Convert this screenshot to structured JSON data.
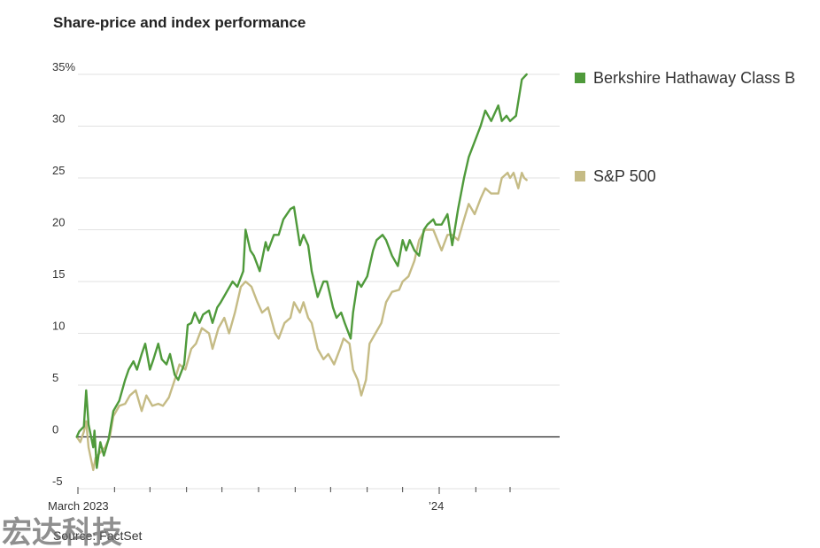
{
  "chart_data": {
    "type": "line",
    "title": "Share-price and index performance",
    "source": "Source: FactSet",
    "ylim": [
      -5,
      35
    ],
    "y_ticks": [
      35,
      30,
      25,
      20,
      15,
      10,
      5,
      0,
      -5
    ],
    "y_tick_labels": [
      "35%",
      "30",
      "25",
      "20",
      "15",
      "10",
      "5",
      "0",
      "-5"
    ],
    "x_start": "2023-03-01",
    "x_end": "2024-04-12",
    "x_tick_labels": [
      {
        "date": "2023-03-01",
        "label": "March 2023"
      },
      {
        "date": "2024-01-01",
        "label": "’24"
      }
    ],
    "x_minor_ticks": [
      "2023-04-01",
      "2023-05-01",
      "2023-06-01",
      "2023-07-01",
      "2023-08-01",
      "2023-09-01",
      "2023-10-01",
      "2023-11-01",
      "2023-12-01",
      "2024-02-01",
      "2024-03-01"
    ],
    "grid": true,
    "legend_position": "right",
    "series": [
      {
        "name": "Berkshire Hathaway Class B",
        "color": "#4f9a3b",
        "points": [
          [
            "2023-02-28",
            0.0
          ],
          [
            "2023-03-02",
            0.5
          ],
          [
            "2023-03-06",
            1.0
          ],
          [
            "2023-03-08",
            4.5
          ],
          [
            "2023-03-10",
            1.2
          ],
          [
            "2023-03-14",
            -1.0
          ],
          [
            "2023-03-15",
            0.6
          ],
          [
            "2023-03-17",
            -3.0
          ],
          [
            "2023-03-20",
            -0.5
          ],
          [
            "2023-03-23",
            -1.8
          ],
          [
            "2023-03-27",
            -0.2
          ],
          [
            "2023-03-31",
            2.5
          ],
          [
            "2023-04-05",
            3.5
          ],
          [
            "2023-04-10",
            5.5
          ],
          [
            "2023-04-13",
            6.5
          ],
          [
            "2023-04-17",
            7.3
          ],
          [
            "2023-04-20",
            6.5
          ],
          [
            "2023-04-24",
            8.0
          ],
          [
            "2023-04-27",
            9.0
          ],
          [
            "2023-05-01",
            6.5
          ],
          [
            "2023-05-04",
            7.5
          ],
          [
            "2023-05-08",
            9.0
          ],
          [
            "2023-05-11",
            7.5
          ],
          [
            "2023-05-15",
            7.0
          ],
          [
            "2023-05-18",
            8.0
          ],
          [
            "2023-05-22",
            6.0
          ],
          [
            "2023-05-25",
            5.5
          ],
          [
            "2023-05-30",
            7.0
          ],
          [
            "2023-06-02",
            10.8
          ],
          [
            "2023-06-05",
            11.0
          ],
          [
            "2023-06-08",
            12.0
          ],
          [
            "2023-06-12",
            11.0
          ],
          [
            "2023-06-15",
            11.8
          ],
          [
            "2023-06-20",
            12.2
          ],
          [
            "2023-06-23",
            11.0
          ],
          [
            "2023-06-27",
            12.5
          ],
          [
            "2023-06-30",
            13.0
          ],
          [
            "2023-07-05",
            14.0
          ],
          [
            "2023-07-10",
            15.0
          ],
          [
            "2023-07-14",
            14.5
          ],
          [
            "2023-07-19",
            16.0
          ],
          [
            "2023-07-21",
            20.0
          ],
          [
            "2023-07-25",
            18.0
          ],
          [
            "2023-07-28",
            17.5
          ],
          [
            "2023-08-02",
            16.0
          ],
          [
            "2023-08-07",
            18.8
          ],
          [
            "2023-08-09",
            18.0
          ],
          [
            "2023-08-14",
            19.5
          ],
          [
            "2023-08-18",
            19.5
          ],
          [
            "2023-08-22",
            21.0
          ],
          [
            "2023-08-28",
            22.0
          ],
          [
            "2023-08-31",
            22.2
          ],
          [
            "2023-09-05",
            18.5
          ],
          [
            "2023-09-08",
            19.5
          ],
          [
            "2023-09-12",
            18.5
          ],
          [
            "2023-09-15",
            16.0
          ],
          [
            "2023-09-20",
            13.5
          ],
          [
            "2023-09-25",
            15.0
          ],
          [
            "2023-09-28",
            15.0
          ],
          [
            "2023-10-03",
            12.5
          ],
          [
            "2023-10-06",
            11.5
          ],
          [
            "2023-10-10",
            12.0
          ],
          [
            "2023-10-13",
            11.0
          ],
          [
            "2023-10-18",
            9.5
          ],
          [
            "2023-10-20",
            12.0
          ],
          [
            "2023-10-24",
            15.0
          ],
          [
            "2023-10-27",
            14.5
          ],
          [
            "2023-11-01",
            15.5
          ],
          [
            "2023-11-06",
            18.0
          ],
          [
            "2023-11-09",
            19.0
          ],
          [
            "2023-11-14",
            19.5
          ],
          [
            "2023-11-17",
            19.0
          ],
          [
            "2023-11-22",
            17.5
          ],
          [
            "2023-11-27",
            16.5
          ],
          [
            "2023-12-01",
            19.0
          ],
          [
            "2023-12-04",
            18.0
          ],
          [
            "2023-12-07",
            19.0
          ],
          [
            "2023-12-11",
            18.0
          ],
          [
            "2023-12-15",
            17.5
          ],
          [
            "2023-12-19",
            20.0
          ],
          [
            "2023-12-22",
            20.5
          ],
          [
            "2023-12-27",
            21.0
          ],
          [
            "2023-12-29",
            20.5
          ],
          [
            "2024-01-03",
            20.5
          ],
          [
            "2024-01-08",
            21.5
          ],
          [
            "2024-01-12",
            18.5
          ],
          [
            "2024-01-17",
            22.0
          ],
          [
            "2024-01-22",
            25.0
          ],
          [
            "2024-01-26",
            27.0
          ],
          [
            "2024-01-31",
            28.5
          ],
          [
            "2024-02-05",
            30.0
          ],
          [
            "2024-02-09",
            31.5
          ],
          [
            "2024-02-14",
            30.5
          ],
          [
            "2024-02-20",
            32.0
          ],
          [
            "2024-02-23",
            30.5
          ],
          [
            "2024-02-27",
            31.0
          ],
          [
            "2024-03-01",
            30.5
          ],
          [
            "2024-03-06",
            31.0
          ],
          [
            "2024-03-11",
            34.5
          ],
          [
            "2024-03-15",
            35.0
          ]
        ]
      },
      {
        "name": "S&P 500",
        "color": "#c5bb85",
        "points": [
          [
            "2023-02-28",
            0.0
          ],
          [
            "2023-03-03",
            -0.5
          ],
          [
            "2023-03-06",
            0.5
          ],
          [
            "2023-03-08",
            1.5
          ],
          [
            "2023-03-10",
            -1.0
          ],
          [
            "2023-03-14",
            -3.2
          ],
          [
            "2023-03-16",
            -2.0
          ],
          [
            "2023-03-20",
            -1.5
          ],
          [
            "2023-03-24",
            -1.0
          ],
          [
            "2023-03-28",
            0.0
          ],
          [
            "2023-03-31",
            2.0
          ],
          [
            "2023-04-05",
            3.0
          ],
          [
            "2023-04-10",
            3.2
          ],
          [
            "2023-04-14",
            4.0
          ],
          [
            "2023-04-19",
            4.5
          ],
          [
            "2023-04-24",
            2.5
          ],
          [
            "2023-04-28",
            4.0
          ],
          [
            "2023-05-03",
            3.0
          ],
          [
            "2023-05-08",
            3.2
          ],
          [
            "2023-05-12",
            3.0
          ],
          [
            "2023-05-17",
            3.8
          ],
          [
            "2023-05-22",
            5.5
          ],
          [
            "2023-05-26",
            7.0
          ],
          [
            "2023-05-31",
            6.5
          ],
          [
            "2023-06-05",
            8.5
          ],
          [
            "2023-06-09",
            9.0
          ],
          [
            "2023-06-14",
            10.5
          ],
          [
            "2023-06-20",
            10.0
          ],
          [
            "2023-06-23",
            8.5
          ],
          [
            "2023-06-28",
            10.5
          ],
          [
            "2023-07-03",
            11.5
          ],
          [
            "2023-07-07",
            10.0
          ],
          [
            "2023-07-12",
            12.0
          ],
          [
            "2023-07-17",
            14.5
          ],
          [
            "2023-07-21",
            15.0
          ],
          [
            "2023-07-26",
            14.5
          ],
          [
            "2023-07-31",
            13.0
          ],
          [
            "2023-08-04",
            12.0
          ],
          [
            "2023-08-09",
            12.5
          ],
          [
            "2023-08-15",
            10.0
          ],
          [
            "2023-08-18",
            9.5
          ],
          [
            "2023-08-23",
            11.0
          ],
          [
            "2023-08-28",
            11.5
          ],
          [
            "2023-08-31",
            13.0
          ],
          [
            "2023-09-05",
            12.0
          ],
          [
            "2023-09-08",
            13.0
          ],
          [
            "2023-09-12",
            11.5
          ],
          [
            "2023-09-15",
            11.0
          ],
          [
            "2023-09-20",
            8.5
          ],
          [
            "2023-09-25",
            7.5
          ],
          [
            "2023-09-29",
            8.0
          ],
          [
            "2023-10-04",
            7.0
          ],
          [
            "2023-10-09",
            8.5
          ],
          [
            "2023-10-12",
            9.5
          ],
          [
            "2023-10-17",
            9.0
          ],
          [
            "2023-10-20",
            6.5
          ],
          [
            "2023-10-24",
            5.5
          ],
          [
            "2023-10-27",
            4.0
          ],
          [
            "2023-10-31",
            5.5
          ],
          [
            "2023-11-03",
            9.0
          ],
          [
            "2023-11-08",
            10.0
          ],
          [
            "2023-11-13",
            11.0
          ],
          [
            "2023-11-17",
            13.0
          ],
          [
            "2023-11-22",
            14.0
          ],
          [
            "2023-11-28",
            14.2
          ],
          [
            "2023-12-01",
            15.0
          ],
          [
            "2023-12-06",
            15.5
          ],
          [
            "2023-12-11",
            17.0
          ],
          [
            "2023-12-15",
            19.0
          ],
          [
            "2023-12-20",
            20.0
          ],
          [
            "2023-12-27",
            20.0
          ],
          [
            "2024-01-03",
            18.0
          ],
          [
            "2024-01-08",
            19.5
          ],
          [
            "2024-01-12",
            19.5
          ],
          [
            "2024-01-17",
            19.0
          ],
          [
            "2024-01-22",
            21.0
          ],
          [
            "2024-01-26",
            22.5
          ],
          [
            "2024-01-31",
            21.5
          ],
          [
            "2024-02-05",
            23.0
          ],
          [
            "2024-02-09",
            24.0
          ],
          [
            "2024-02-14",
            23.5
          ],
          [
            "2024-02-20",
            23.5
          ],
          [
            "2024-02-23",
            25.0
          ],
          [
            "2024-02-28",
            25.5
          ],
          [
            "2024-03-01",
            25.0
          ],
          [
            "2024-03-04",
            25.5
          ],
          [
            "2024-03-08",
            24.0
          ],
          [
            "2024-03-11",
            25.5
          ],
          [
            "2024-03-13",
            25.0
          ],
          [
            "2024-03-15",
            24.8
          ]
        ]
      }
    ]
  },
  "watermark": {
    "text": "宏达科技",
    "color": "#6a6a6a"
  }
}
